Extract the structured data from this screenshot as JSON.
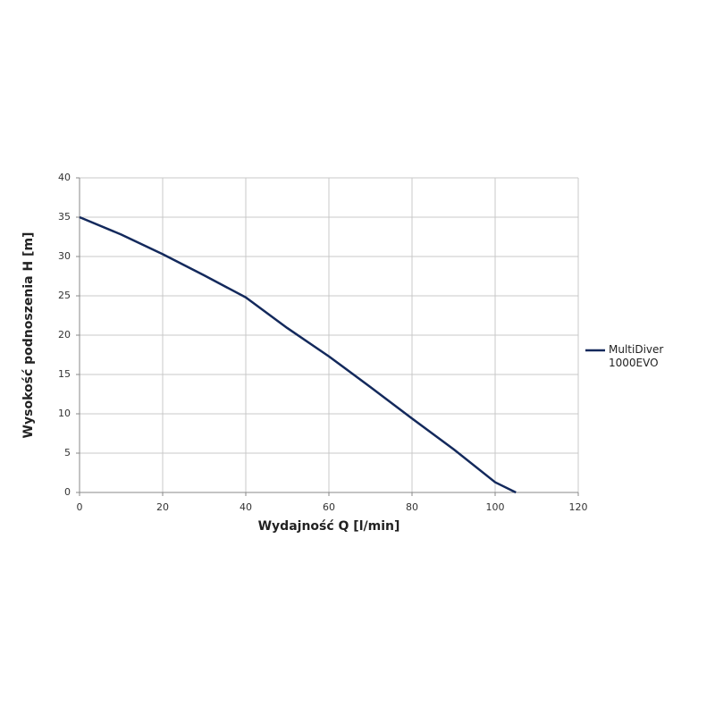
{
  "chart_data": {
    "type": "line",
    "x_label": "Wydajność Q [l/min]",
    "y_label": "Wysokość podnoszenia H [m]",
    "x": [
      0,
      10,
      20,
      30,
      40,
      50,
      60,
      70,
      80,
      90,
      100,
      105
    ],
    "series": [
      {
        "name": "MultiDiver 1000EVO",
        "color": "#13295c",
        "values": [
          35,
          32.8,
          30.3,
          27.6,
          24.8,
          20.9,
          17.3,
          13.4,
          9.4,
          5.5,
          1.3,
          0
        ]
      }
    ],
    "xlim": [
      0,
      120
    ],
    "xticks": [
      0,
      20,
      40,
      60,
      80,
      100,
      120
    ],
    "ylim": [
      0,
      40
    ],
    "yticks": [
      0,
      5,
      10,
      15,
      20,
      25,
      30,
      35,
      40
    ],
    "grid": true,
    "legend": "right"
  }
}
